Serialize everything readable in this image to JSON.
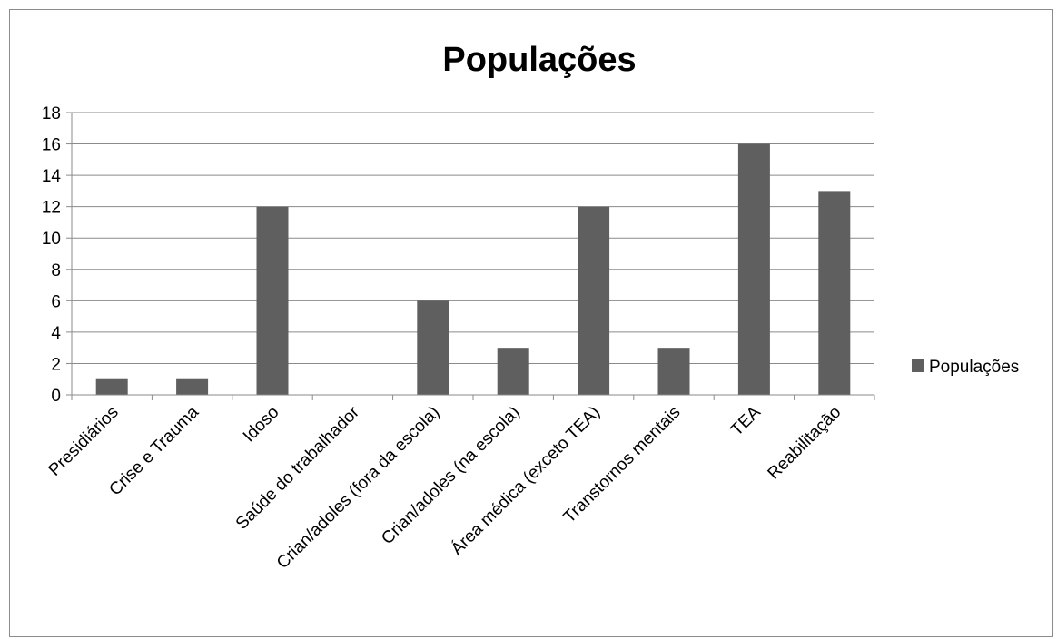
{
  "chart_data": {
    "type": "bar",
    "title": "Populações",
    "xlabel": "",
    "ylabel": "",
    "ylim": [
      0,
      18
    ],
    "yticks": [
      0,
      2,
      4,
      6,
      8,
      10,
      12,
      14,
      16,
      18
    ],
    "grid": true,
    "legend_position": "right",
    "bar_color": "#5f5f5f",
    "categories": [
      "Presidiários",
      "Crise e Trauma",
      "Idoso",
      "Saúde do trabalhador",
      "Crian/adoles (fora da escola)",
      "Crian/adoles (na escola)",
      "Área médica (exceto TEA)",
      "Transtornos mentais",
      "TEA",
      "Reabilitação"
    ],
    "series": [
      {
        "name": "Populações",
        "values": [
          1,
          1,
          12,
          0,
          6,
          3,
          12,
          3,
          16,
          13
        ]
      }
    ]
  }
}
